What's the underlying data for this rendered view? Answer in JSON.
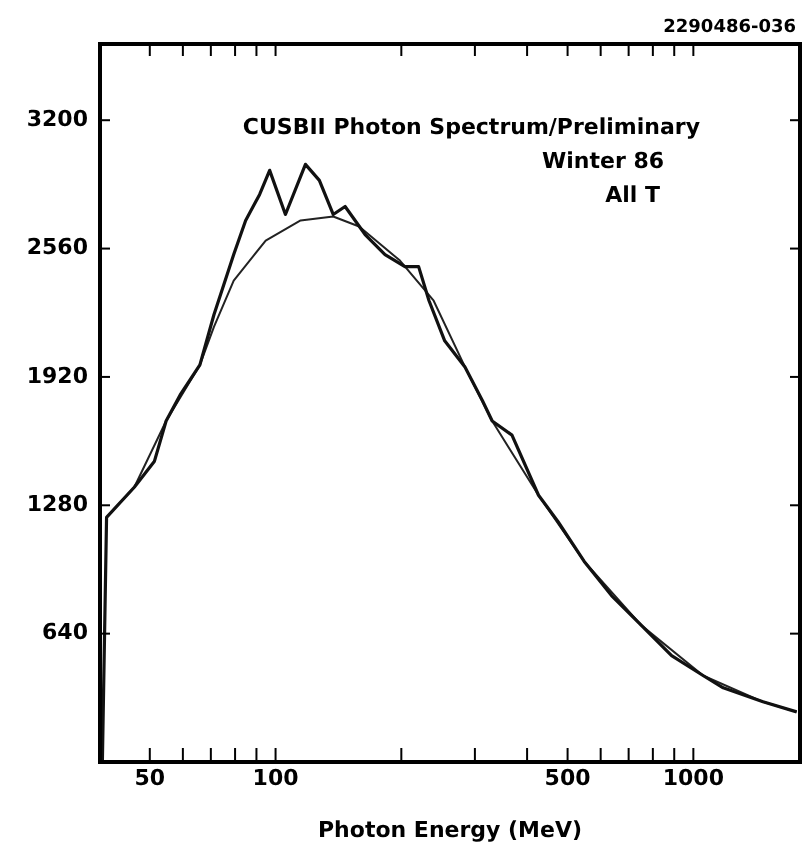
{
  "chart_data": {
    "type": "line",
    "title": "CUSBII Photon Spectrum/Preliminary",
    "subtitle": "Winter 86",
    "xlabel": "Photon Energy (MeV)",
    "annotations": [
      "All T",
      "2290486-036"
    ],
    "log": "x",
    "grid": false,
    "legend": false,
    "marker": "none",
    "line_style": "solid",
    "xlim": [
      38,
      1800
    ],
    "ylim": [
      0,
      3580
    ],
    "xticks": [
      {
        "value": 50,
        "label": "50"
      },
      {
        "value": 60,
        "label": null
      },
      {
        "value": 70,
        "label": null
      },
      {
        "value": 80,
        "label": null
      },
      {
        "value": 90,
        "label": null
      },
      {
        "value": 100,
        "label": "100"
      },
      {
        "value": 200,
        "label": null
      },
      {
        "value": 300,
        "label": null
      },
      {
        "value": 400,
        "label": null
      },
      {
        "value": 500,
        "label": "500"
      },
      {
        "value": 600,
        "label": null
      },
      {
        "value": 700,
        "label": null
      },
      {
        "value": 800,
        "label": null
      },
      {
        "value": 900,
        "label": null
      },
      {
        "value": 1000,
        "label": "1000"
      }
    ],
    "yticks": [
      640,
      1280,
      1920,
      2560,
      3200
    ],
    "series": [
      {
        "color": "#111111",
        "x": [
          38.5,
          39.4,
          45.9,
          51.3,
          54.7,
          59.1,
          65.9,
          71.2,
          79.4,
          84.8,
          91.6,
          96.8,
          105.6,
          117.9,
          127.3,
          137.4,
          146.7,
          163.8,
          182.8,
          204,
          220,
          233,
          254,
          284,
          313,
          330,
          368,
          426,
          474,
          548,
          637,
          752,
          887,
          1057,
          1179,
          1468,
          1767
        ],
        "values": [
          0,
          1220,
          1370,
          1500,
          1700,
          1830,
          1980,
          2230,
          2530,
          2700,
          2830,
          2950,
          2730,
          2980,
          2900,
          2730,
          2770,
          2630,
          2530,
          2470,
          2470,
          2300,
          2100,
          1970,
          1800,
          1700,
          1630,
          1330,
          1200,
          1000,
          830,
          680,
          530,
          430,
          370,
          300,
          250
        ]
      },
      {
        "color": "#222222",
        "x": [
          39.4,
          45.9,
          54.7,
          65.9,
          71.2,
          79.4,
          94.7,
          114.8,
          137.4,
          158.5,
          198.5,
          239,
          284,
          330,
          426,
          548,
          752,
          1057,
          1468,
          1767
        ],
        "values": [
          1220,
          1370,
          1700,
          1980,
          2170,
          2400,
          2600,
          2700,
          2720,
          2670,
          2500,
          2300,
          1970,
          1700,
          1330,
          1000,
          680,
          430,
          300,
          250
        ]
      }
    ]
  }
}
